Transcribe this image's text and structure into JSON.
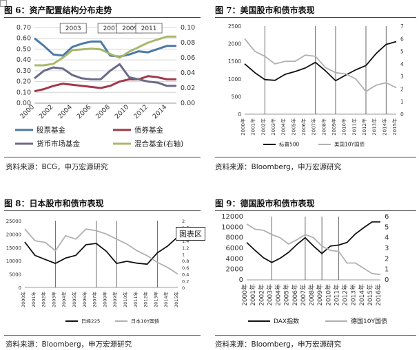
{
  "panels": [
    {
      "title": "图 6：资产配置结构分布走势",
      "source": "资料来源：BCG，申万宏源研究"
    },
    {
      "title": "图 7：美国股市和债市表现",
      "source": "资料来源：Bloomberg，申万宏源研究"
    },
    {
      "title": "图 8：日本股市和债市表现",
      "source": "资料来源：Bloomberg，申万宏源研究"
    },
    {
      "title": "图 9：德国股市和债市表现",
      "source": "资料来源：Bloomberg，申万宏源研究"
    }
  ],
  "overlay_label": "图表区",
  "chart_data": [
    {
      "type": "line",
      "x": [
        "2000",
        "2001",
        "2002",
        "2003",
        "2004",
        "2005",
        "2006",
        "2007",
        "2008",
        "2009",
        "2010",
        "2011",
        "2012",
        "2013",
        "2014",
        "2015"
      ],
      "x_ticks": [
        "2000",
        "2002",
        "2004",
        "2006",
        "2008",
        "2010",
        "2012",
        "2014"
      ],
      "ylim": [
        0,
        0.7
      ],
      "y_ticks": [
        "0.00",
        "0.10",
        "0.20",
        "0.30",
        "0.40",
        "0.50",
        "0.60",
        "0.70"
      ],
      "y2lim": [
        0,
        0.1
      ],
      "y2_ticks": [
        "0.00",
        "0.02",
        "0.04",
        "0.06",
        "0.08",
        "0.10"
      ],
      "annotations": [
        "2003",
        "2007",
        "2009",
        "2011"
      ],
      "annotation_x": [
        "2003",
        "2007",
        "2009",
        "2011"
      ],
      "series": [
        {
          "name": "股票基金",
          "color": "#4a7aa8",
          "axis": "left",
          "values": [
            0.6,
            0.53,
            0.45,
            0.44,
            0.52,
            0.55,
            0.57,
            0.57,
            0.44,
            0.43,
            0.45,
            0.48,
            0.47,
            0.5,
            0.53,
            0.53
          ]
        },
        {
          "name": "债券基金",
          "color": "#a0394a",
          "axis": "left",
          "values": [
            0.11,
            0.13,
            0.16,
            0.18,
            0.17,
            0.16,
            0.15,
            0.14,
            0.16,
            0.2,
            0.22,
            0.22,
            0.25,
            0.24,
            0.22,
            0.22
          ]
        },
        {
          "name": "货币市场基金",
          "color": "#6a6a8a",
          "axis": "left",
          "values": [
            0.23,
            0.3,
            0.33,
            0.32,
            0.26,
            0.23,
            0.22,
            0.22,
            0.3,
            0.36,
            0.24,
            0.22,
            0.2,
            0.19,
            0.16,
            0.16
          ]
        },
        {
          "name": "混合基金(右轴)",
          "color": "#a8b86a",
          "axis": "right",
          "values": [
            0.05,
            0.05,
            0.052,
            0.06,
            0.07,
            0.071,
            0.072,
            0.071,
            0.065,
            0.06,
            0.068,
            0.074,
            0.08,
            0.084,
            0.088,
            0.088
          ]
        }
      ]
    },
    {
      "type": "line",
      "x": [
        "2000年",
        "2001年",
        "2002年",
        "2003年",
        "2004年",
        "2005年",
        "2006年",
        "2007年",
        "2008年",
        "2009年",
        "2010年",
        "2011年",
        "2012年",
        "2013年",
        "2014年",
        "2015年"
      ],
      "ylim": [
        0,
        2500
      ],
      "y_ticks": [
        "0",
        "500",
        "1000",
        "1500",
        "2000",
        "2500"
      ],
      "y2lim": [
        0,
        7
      ],
      "y2_ticks": [
        "0",
        "1",
        "2",
        "3",
        "4",
        "5",
        "6",
        "7"
      ],
      "vlines_x": [
        "2002年",
        "2007年",
        "2009年",
        "2012年",
        "2014年"
      ],
      "series": [
        {
          "name": "标普500",
          "color": "#111111",
          "axis": "left",
          "values": [
            1430,
            1180,
            980,
            960,
            1130,
            1210,
            1310,
            1470,
            1230,
            950,
            1110,
            1260,
            1380,
            1720,
            1980,
            2060
          ]
        },
        {
          "name": "美国10Y国债",
          "color": "#b0b0b0",
          "axis": "right",
          "values": [
            6.0,
            5.0,
            4.6,
            4.0,
            4.2,
            4.2,
            4.7,
            4.6,
            3.7,
            3.3,
            3.2,
            2.8,
            1.8,
            2.3,
            2.5,
            2.1
          ]
        }
      ]
    },
    {
      "type": "line",
      "x": [
        "2000年",
        "2001年",
        "2002年",
        "2003年",
        "2004年",
        "2005年",
        "2006年",
        "2007年",
        "2008年",
        "2009年",
        "2010年",
        "2011年",
        "2012年",
        "2013年",
        "2014年",
        "2015年"
      ],
      "ylim": [
        0,
        25000
      ],
      "y_ticks": [
        "0",
        "5000",
        "10000",
        "15000",
        "20000",
        "25000"
      ],
      "y2lim": [
        0,
        2
      ],
      "y2_ticks": [
        "0",
        "0.2",
        "0.4",
        "0.6",
        "0.8",
        "1",
        "1.2",
        "1.4",
        "1.6",
        "1.8",
        "2"
      ],
      "vlines_x": [
        "2003年",
        "2007年",
        "2009年",
        "2013年"
      ],
      "series": [
        {
          "name": "日经225",
          "color": "#111111",
          "axis": "left",
          "values": [
            17000,
            12000,
            10500,
            9000,
            11000,
            12000,
            16000,
            16500,
            13500,
            9000,
            9800,
            9100,
            8700,
            13000,
            15500,
            19000
          ]
        },
        {
          "name": "日本10Y国债",
          "color": "#b0b0b0",
          "axis": "right",
          "values": [
            1.75,
            1.4,
            1.35,
            1.1,
            1.55,
            1.45,
            1.75,
            1.7,
            1.6,
            1.45,
            1.3,
            1.1,
            0.95,
            0.75,
            0.6,
            0.4
          ]
        }
      ]
    },
    {
      "type": "line",
      "x": [
        "2000年",
        "2001年",
        "2002年",
        "2003年",
        "2004年",
        "2005年",
        "2006年",
        "2007年",
        "2008年",
        "2009年",
        "2010年",
        "2011年",
        "2012年",
        "2013年",
        "2014年",
        "2015年",
        "2016年"
      ],
      "ylim": [
        0,
        12000
      ],
      "y_ticks": [
        "0",
        "2000",
        "4000",
        "6000",
        "8000",
        "10000",
        "12000"
      ],
      "y2lim": [
        0,
        6
      ],
      "y2_ticks": [
        "0",
        "1",
        "2",
        "3",
        "4",
        "5",
        "6"
      ],
      "vlines_x": [
        "2003年",
        "2007年",
        "2009年",
        "2011年"
      ],
      "series": [
        {
          "name": "DAX指数",
          "color": "#111111",
          "axis": "left",
          "values": [
            7100,
            5600,
            4200,
            3300,
            4100,
            5200,
            6700,
            8000,
            6400,
            5000,
            6400,
            6600,
            7100,
            8700,
            9900,
            11000,
            11000
          ]
        },
        {
          "name": "德国10Y国债",
          "color": "#b0b0b0",
          "axis": "right",
          "values": [
            5.3,
            4.8,
            4.7,
            4.3,
            4.0,
            3.4,
            3.8,
            4.3,
            4.0,
            3.2,
            2.8,
            2.7,
            1.6,
            1.6,
            1.1,
            0.6,
            0.5
          ]
        }
      ]
    }
  ]
}
